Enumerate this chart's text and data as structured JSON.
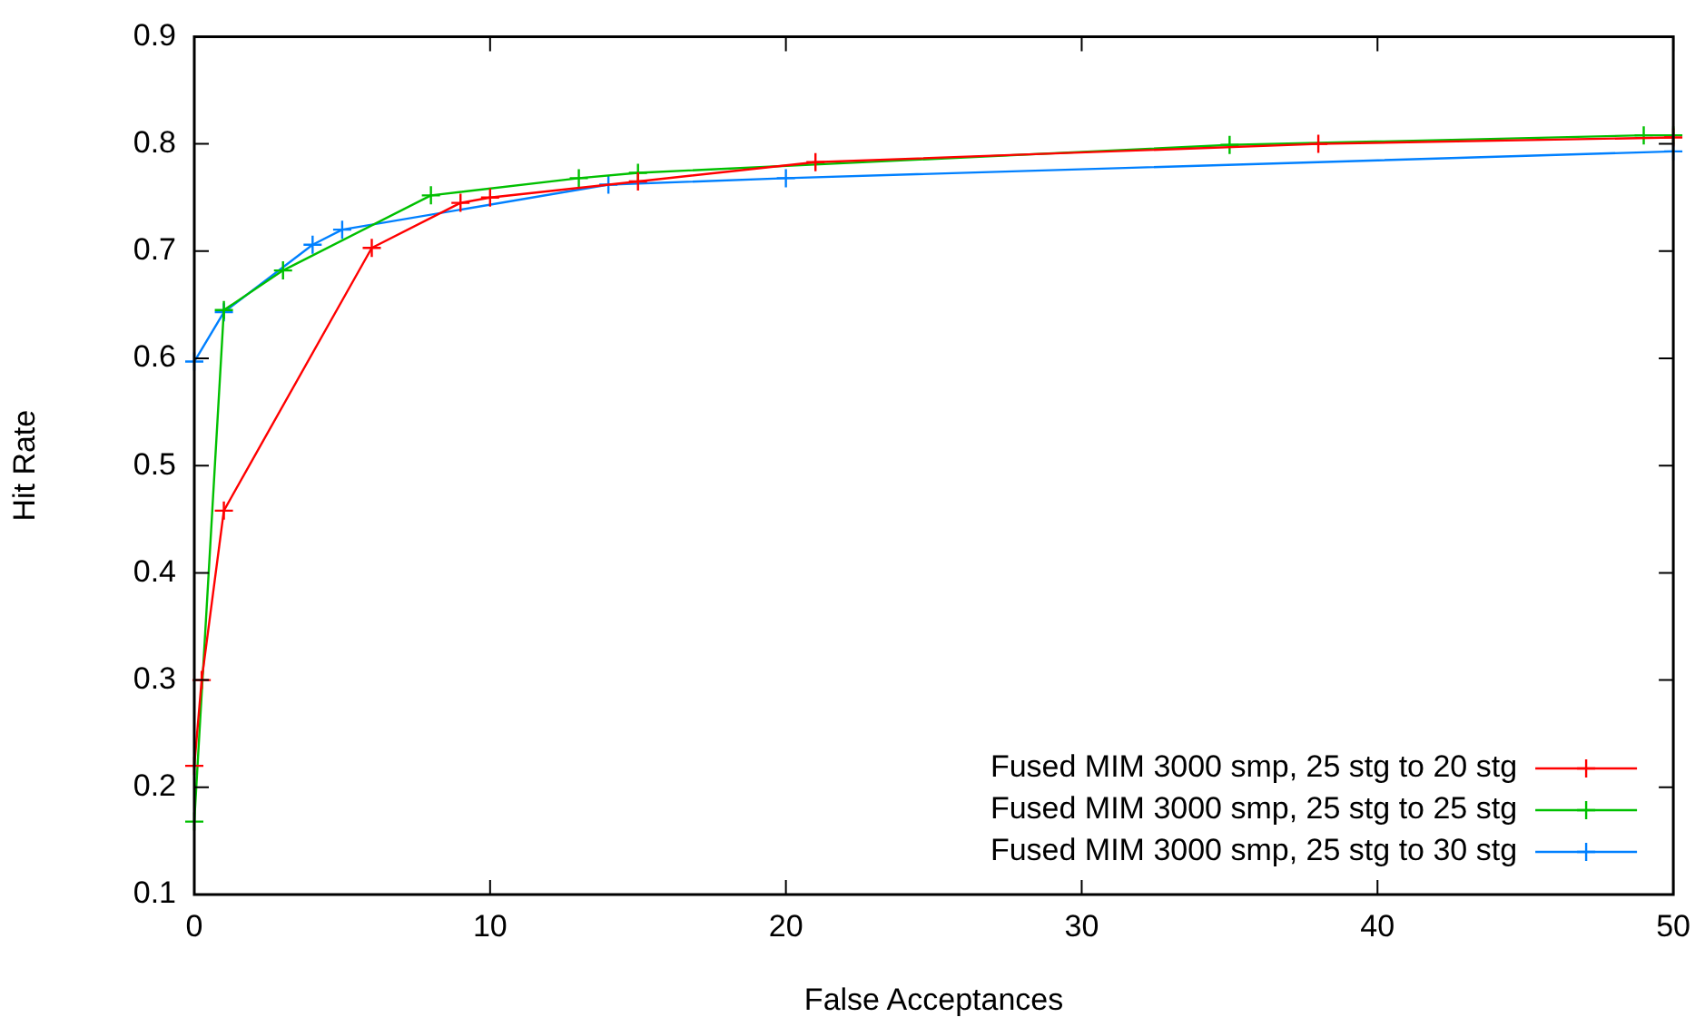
{
  "chart_data": {
    "type": "line",
    "xlabel": "False Acceptances",
    "ylabel": "Hit Rate",
    "xlim": [
      0,
      50
    ],
    "xticks": [
      0,
      10,
      20,
      30,
      40,
      50
    ],
    "ylim": [
      0.1,
      0.9
    ],
    "yticks": [
      0.1,
      0.2,
      0.3,
      0.4,
      0.5,
      0.6,
      0.7,
      0.8,
      0.9
    ],
    "grid": false,
    "legend": "bottom right",
    "line_style": "solid",
    "series": [
      {
        "name": "Fused MIM 3000 smp, 25 stg to 20 stg",
        "color": "#ff0000",
        "marker": "cross",
        "x": [
          0,
          0.25,
          1,
          6,
          9,
          10,
          15,
          21,
          38,
          50
        ],
        "values": [
          0.22,
          0.3,
          0.458,
          0.703,
          0.745,
          0.75,
          0.765,
          0.783,
          0.8,
          0.806
        ]
      },
      {
        "name": "Fused MIM 3000 smp, 25 stg to 25 stg",
        "color": "#00c000",
        "marker": "cross",
        "x": [
          0,
          1,
          3,
          8,
          13,
          15,
          35,
          49,
          50
        ],
        "values": [
          0.168,
          0.645,
          0.682,
          0.752,
          0.768,
          0.773,
          0.799,
          0.808,
          0.808
        ]
      },
      {
        "name": "Fused MIM 3000 smp, 25 stg to 30 stg",
        "color": "#0080ff",
        "marker": "cross",
        "x": [
          0,
          1,
          4,
          5,
          14,
          20,
          50
        ],
        "values": [
          0.597,
          0.643,
          0.706,
          0.72,
          0.762,
          0.768,
          0.793
        ]
      }
    ]
  }
}
